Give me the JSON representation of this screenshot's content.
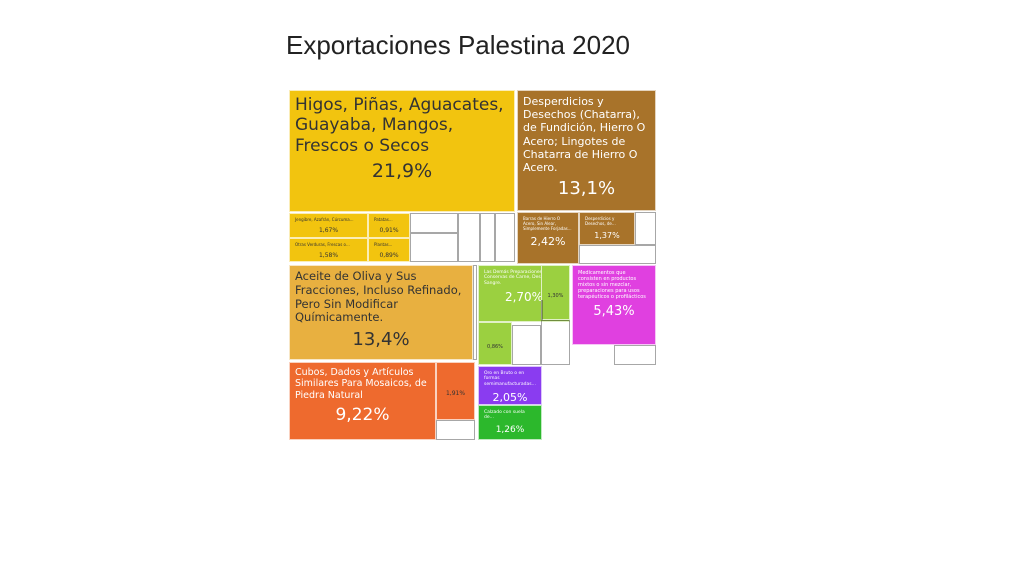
{
  "chart_data": {
    "type": "treemap",
    "title": "Exportaciones Palestina 2020",
    "categories": [
      "Higos, Piñas, Aguacates, Guayaba, Mangos, Frescos o Secos",
      "Desperdicios y Desechos (Chatarra), de Fundición, Hierro O Acero; Lingotes de Chatarra de Hierro O Acero.",
      "Aceite de Oliva y Sus Fracciones, Incluso Refinado, Pero Sin Modificar Químicamente.",
      "Cubos, Dados y Artículos Similares Para Mosaicos, de Piedra Natural",
      "Medicamentos que consisten en productos mixtos o sin mezclar, preparaciones para usos terapéuticos o profilácticos",
      "Las Demás Preparaciones y Conservas de Carne, Despojos O Sangre.",
      "Oro en Bruto o en formas semimanufacturadas...",
      "Calzado con suela de...",
      "Jengibre, Azafrán, Cúrcuma...",
      "Otras Verduras, Frescas o...",
      "Patatas...",
      "Plantas...",
      "Barras de Hierro O Acero, Sin Alear, Simplemente Forjadas...",
      "Desperdicios y Desechos, de...",
      null,
      null,
      null
    ],
    "values": [
      21.9,
      13.1,
      13.4,
      9.22,
      5.43,
      2.7,
      2.05,
      1.26,
      1.67,
      1.58,
      0.91,
      0.89,
      2.42,
      1.37,
      1.91,
      1.3,
      0.86
    ],
    "value_labels": [
      "21,9%",
      "13,1%",
      "13,4%",
      "9,22%",
      "5,43%",
      "2,70%",
      "2,05%",
      "1,26%",
      "1,67%",
      "1,58%",
      "0,91%",
      "0,89%",
      "2,42%",
      "1,37%",
      "1,91%",
      "1,30%",
      "0,86%"
    ],
    "colors": [
      "#f2c40f",
      "#a8732a",
      "#e8b040",
      "#ee6a2e",
      "#e040e0",
      "#9bd040",
      "#8a3cf0",
      "#2cb82c",
      "#f2c40f",
      "#f2c40f",
      "#f2c40f",
      "#f2c40f",
      "#a8732a",
      "#a8732a",
      "#ee6a2e",
      "#9bd040",
      "#9bd040"
    ]
  }
}
